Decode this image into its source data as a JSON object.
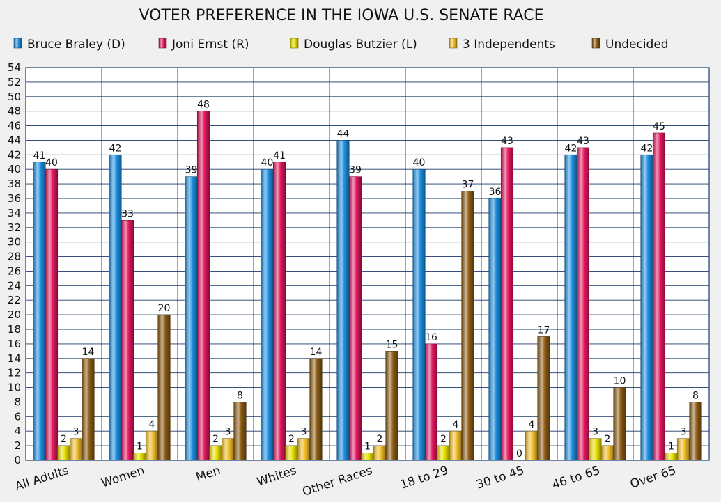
{
  "chart_data": {
    "type": "bar",
    "title": "VOTER PREFERENCE IN THE IOWA U.S. SENATE RACE",
    "xlabel": "",
    "ylabel": "",
    "ylim": [
      0,
      54
    ],
    "ytick_step": 2,
    "grid": true,
    "legend_position": "top",
    "categories": [
      "All Adults",
      "Women",
      "Men",
      "Whites",
      "Other Races",
      "18 to 29",
      "30 to 45",
      "46 to 65",
      "Over 65"
    ],
    "series": [
      {
        "name": "Bruce Braley (D)",
        "color": "#1e8fe0",
        "values": [
          41,
          42,
          39,
          40,
          44,
          40,
          36,
          42,
          42
        ]
      },
      {
        "name": "Joni Ernst (R)",
        "color": "#e0185e",
        "values": [
          40,
          33,
          48,
          41,
          39,
          16,
          43,
          43,
          45
        ]
      },
      {
        "name": "Douglas Butzier (L)",
        "color": "#e8e000",
        "values": [
          2,
          1,
          2,
          2,
          1,
          2,
          0,
          3,
          1
        ]
      },
      {
        "name": "3 Independents",
        "color": "#f0be2c",
        "values": [
          3,
          4,
          3,
          3,
          2,
          4,
          4,
          2,
          3
        ]
      },
      {
        "name": "Undecided",
        "color": "#8a5a12",
        "values": [
          14,
          20,
          8,
          14,
          15,
          37,
          17,
          10,
          8
        ]
      }
    ]
  }
}
